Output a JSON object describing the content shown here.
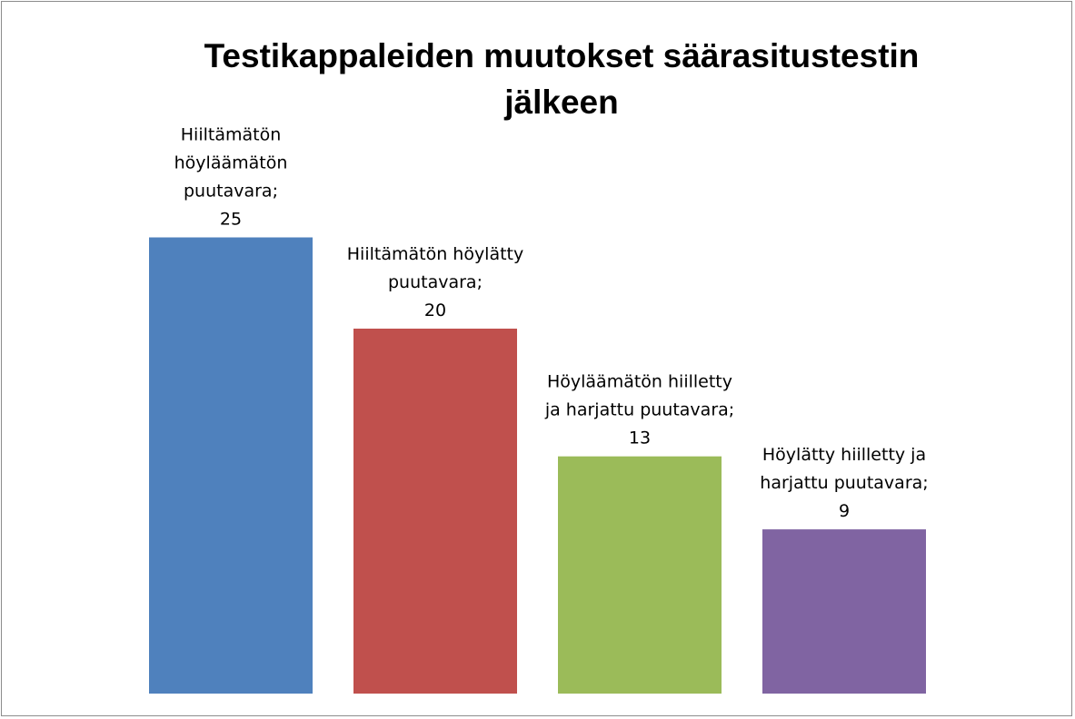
{
  "chart_data": {
    "type": "bar",
    "title_lines": [
      "Testikappaleiden muutokset säärasitustestin",
      "jälkeen"
    ],
    "categories": [
      "Hiiltämätön höyläämätön puutavara",
      "Hiiltämätön höylätty puutavara",
      "Höyläämätön hiilletty ja harjattu puutavara",
      "Höylätty hiilletty ja harjattu puutavara"
    ],
    "values": [
      25,
      20,
      13,
      9
    ],
    "data_labels": [
      [
        "Hiiltämätön",
        "höyläämätön",
        "puutavara;",
        "25"
      ],
      [
        "Hiiltämätön höylätty",
        "puutavara;",
        "20"
      ],
      [
        "Höyläämätön hiilletty",
        "ja harjattu puutavara;",
        "13"
      ],
      [
        "Höylätty hiilletty ja",
        "harjattu  puutavara;",
        "9"
      ]
    ],
    "colors": [
      "#4f81bd",
      "#c0504d",
      "#9bbb59",
      "#8064a2"
    ],
    "ylim": [
      0,
      30
    ],
    "grid": false,
    "legend": false,
    "xlabel": "",
    "ylabel": ""
  }
}
